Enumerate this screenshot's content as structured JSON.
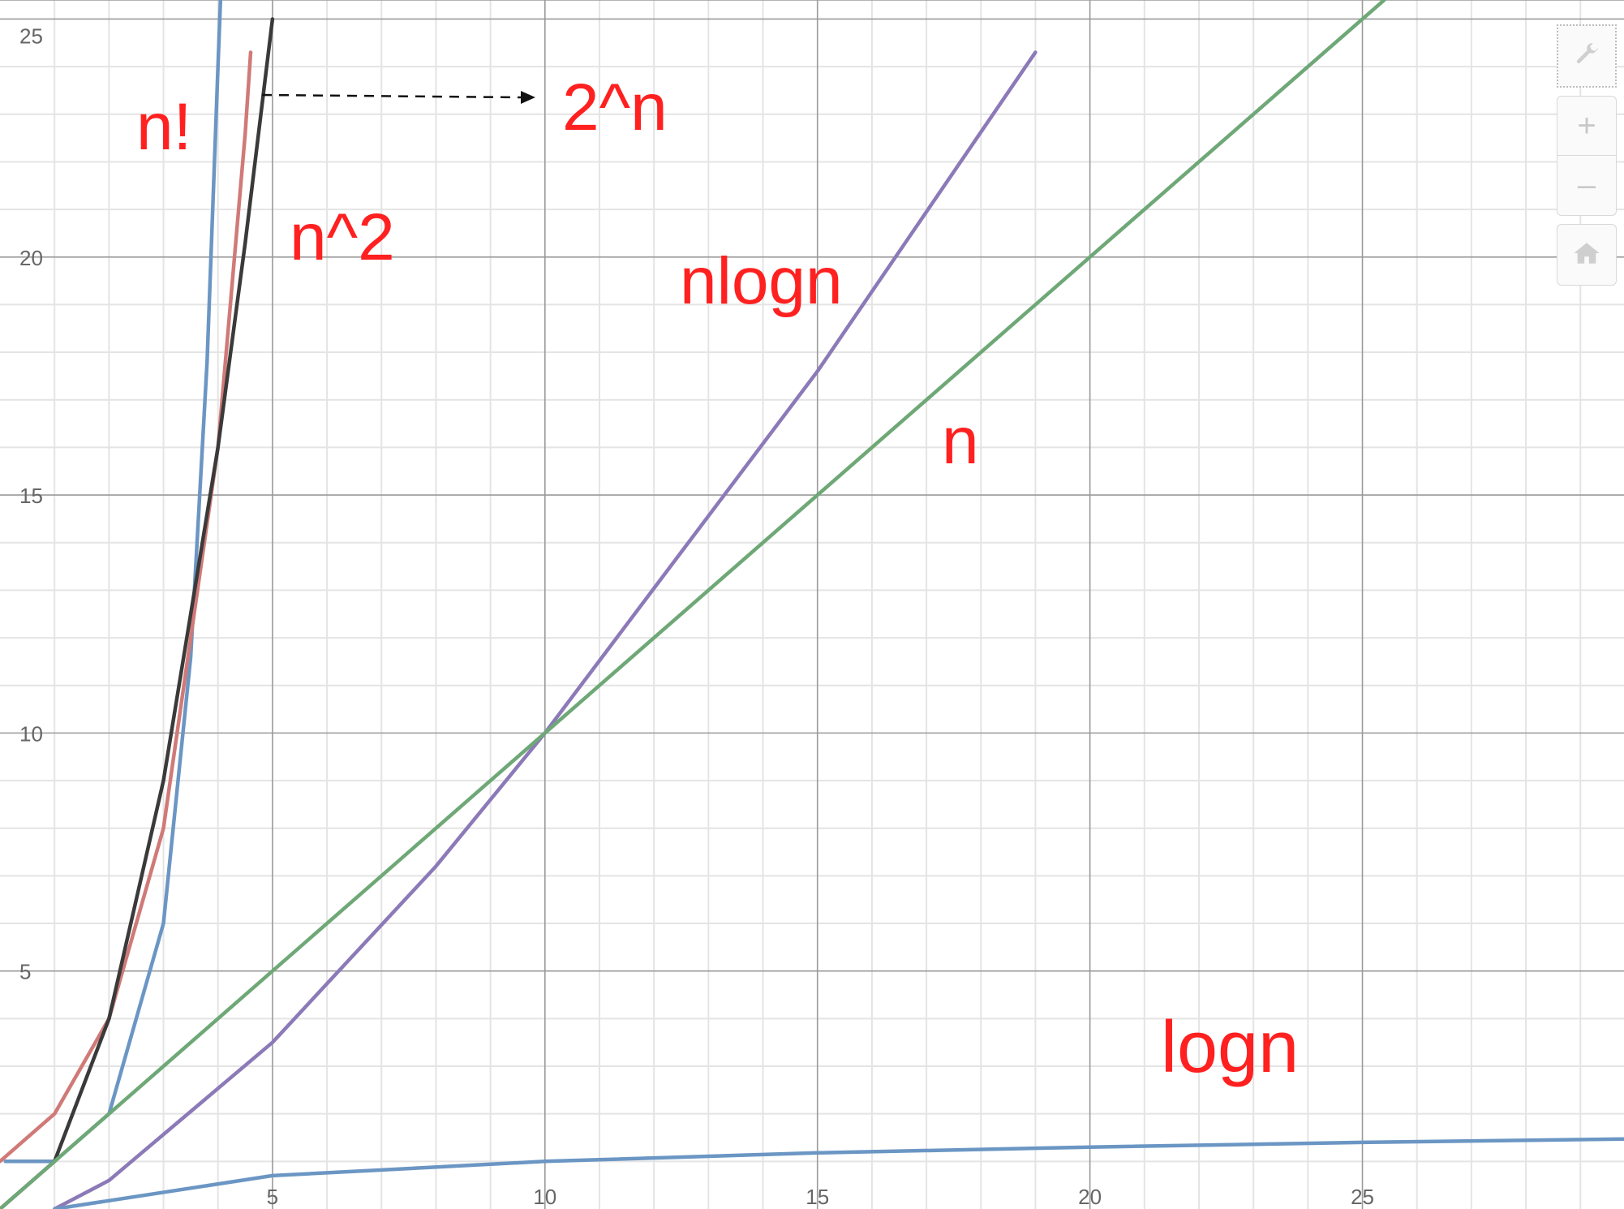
{
  "chart_data": {
    "type": "line",
    "title": "",
    "xlabel": "",
    "ylabel": "",
    "xlim": [
      0,
      29.8
    ],
    "ylim": [
      0,
      25.4
    ],
    "grid": true,
    "x_ticks": [
      5,
      10,
      15,
      20,
      25
    ],
    "y_ticks": [
      5,
      10,
      15,
      20,
      25
    ],
    "series": [
      {
        "name": "n!",
        "color": "#6b96c4",
        "x": [
          0.1,
          1,
          2,
          3,
          3.5,
          3.8,
          4,
          4.1
        ],
        "y": [
          1.0,
          1,
          2,
          6,
          11.6,
          17.8,
          24,
          27.0
        ]
      },
      {
        "name": "n^2",
        "color": "#d07a78",
        "x": [
          0,
          1,
          2,
          3,
          4,
          4.5,
          4.6
        ],
        "y": [
          1,
          2,
          4,
          8,
          16,
          22.6,
          24.3
        ]
      },
      {
        "name": "2^n",
        "color": "#3a3a3a",
        "x": [
          0,
          1,
          2,
          3,
          4,
          4.5,
          5
        ],
        "y": [
          0,
          1,
          4,
          9,
          16,
          20.3,
          25
        ]
      },
      {
        "name": "nlogn",
        "color": "#8c7ab8",
        "x": [
          1,
          2,
          5,
          8,
          10,
          15,
          19
        ],
        "y": [
          0,
          0.6,
          3.5,
          7.2,
          10,
          17.6,
          24.3
        ]
      },
      {
        "name": "n",
        "color": "#6fa877",
        "x": [
          0,
          25.4
        ],
        "y": [
          0,
          25.4
        ]
      },
      {
        "name": "logn",
        "color": "#6b96c4",
        "x": [
          1,
          5,
          10,
          15,
          20,
          25,
          29.8
        ],
        "y": [
          0,
          0.7,
          1.0,
          1.18,
          1.3,
          1.4,
          1.47
        ]
      }
    ],
    "annotations": [
      {
        "text": "n!"
      },
      {
        "text": "2^n"
      },
      {
        "text": "n^2"
      },
      {
        "text": "nlogn"
      },
      {
        "text": "n"
      },
      {
        "text": "logn"
      }
    ]
  },
  "toolbar": {
    "settings_icon": "wrench-icon",
    "zoom_in_label": "+",
    "zoom_out_label": "–",
    "home_icon": "home-icon"
  }
}
